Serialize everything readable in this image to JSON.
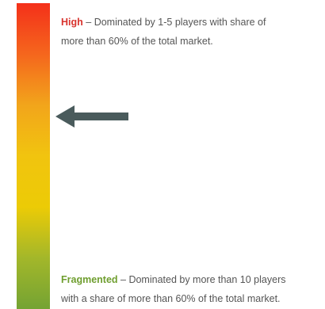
{
  "scale": {
    "gradient_colors": [
      "#f4301a",
      "#f5661d",
      "#f2a51b",
      "#f1c40f",
      "#eccb06",
      "#a3b72a",
      "#74a333"
    ],
    "indicator_level": 0.63
  },
  "levels": {
    "high": {
      "name": "High",
      "name_color": "#d8332d",
      "separator": " – ",
      "line1": "Dominated by 1-5 players with share of",
      "line2": "more than 60% of the total market."
    },
    "fragmented": {
      "name": "Fragmented",
      "name_color": "#6f9e2f",
      "separator": " – ",
      "line1": "Dominated by more than 10 players",
      "line2": "with a share of more than 60% of the total market."
    }
  },
  "arrow": {
    "color": "#4a5b5c",
    "direction": "left"
  }
}
